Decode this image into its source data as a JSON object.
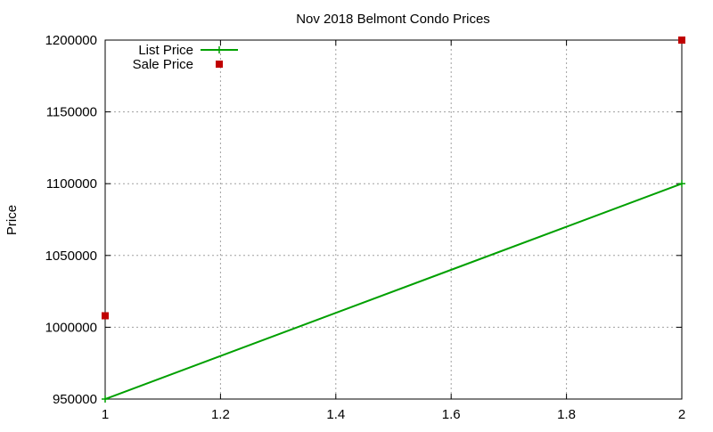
{
  "chart_data": {
    "type": "line",
    "title": "Nov 2018 Belmont Condo Prices",
    "xlabel": "",
    "ylabel": "Price",
    "xlim": [
      1,
      2
    ],
    "ylim": [
      950000,
      1200000
    ],
    "x_ticks": [
      1,
      1.2,
      1.4,
      1.6,
      1.8,
      2
    ],
    "x_tick_labels": [
      "1",
      "1.2",
      "1.4",
      "1.6",
      "1.8",
      "2"
    ],
    "y_ticks": [
      950000,
      1000000,
      1050000,
      1100000,
      1150000,
      1200000
    ],
    "y_tick_labels": [
      "950000",
      "1000000",
      "1050000",
      "1100000",
      "1150000",
      "1200000"
    ],
    "grid": true,
    "legend_position": "top-left",
    "series": [
      {
        "name": "List Price",
        "style": "linespoints",
        "marker": "plus",
        "color": "#00a000",
        "x": [
          1,
          2
        ],
        "y": [
          950000,
          1100000
        ]
      },
      {
        "name": "Sale Price",
        "style": "points",
        "marker": "square",
        "color": "#c00000",
        "x": [
          1,
          2
        ],
        "y": [
          1008000,
          1200000
        ]
      }
    ]
  }
}
